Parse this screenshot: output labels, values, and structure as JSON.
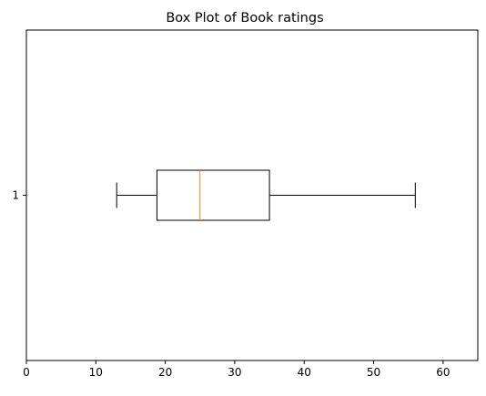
{
  "chart_data": {
    "type": "boxplot",
    "orientation": "horizontal",
    "title": "Box Plot of Book ratings",
    "xlabel": "",
    "ylabel": "",
    "xlim": [
      0,
      65
    ],
    "x_ticks": [
      0,
      10,
      20,
      30,
      40,
      50,
      60
    ],
    "categories": [
      "1"
    ],
    "boxes": [
      {
        "category": "1",
        "whisker_low": 13,
        "q1": 18.8,
        "median": 25,
        "q3": 35,
        "whisker_high": 56
      }
    ],
    "grid": false,
    "colors": {
      "box": "#000000",
      "median": "#ff7f0e",
      "whisker": "#000000"
    }
  }
}
